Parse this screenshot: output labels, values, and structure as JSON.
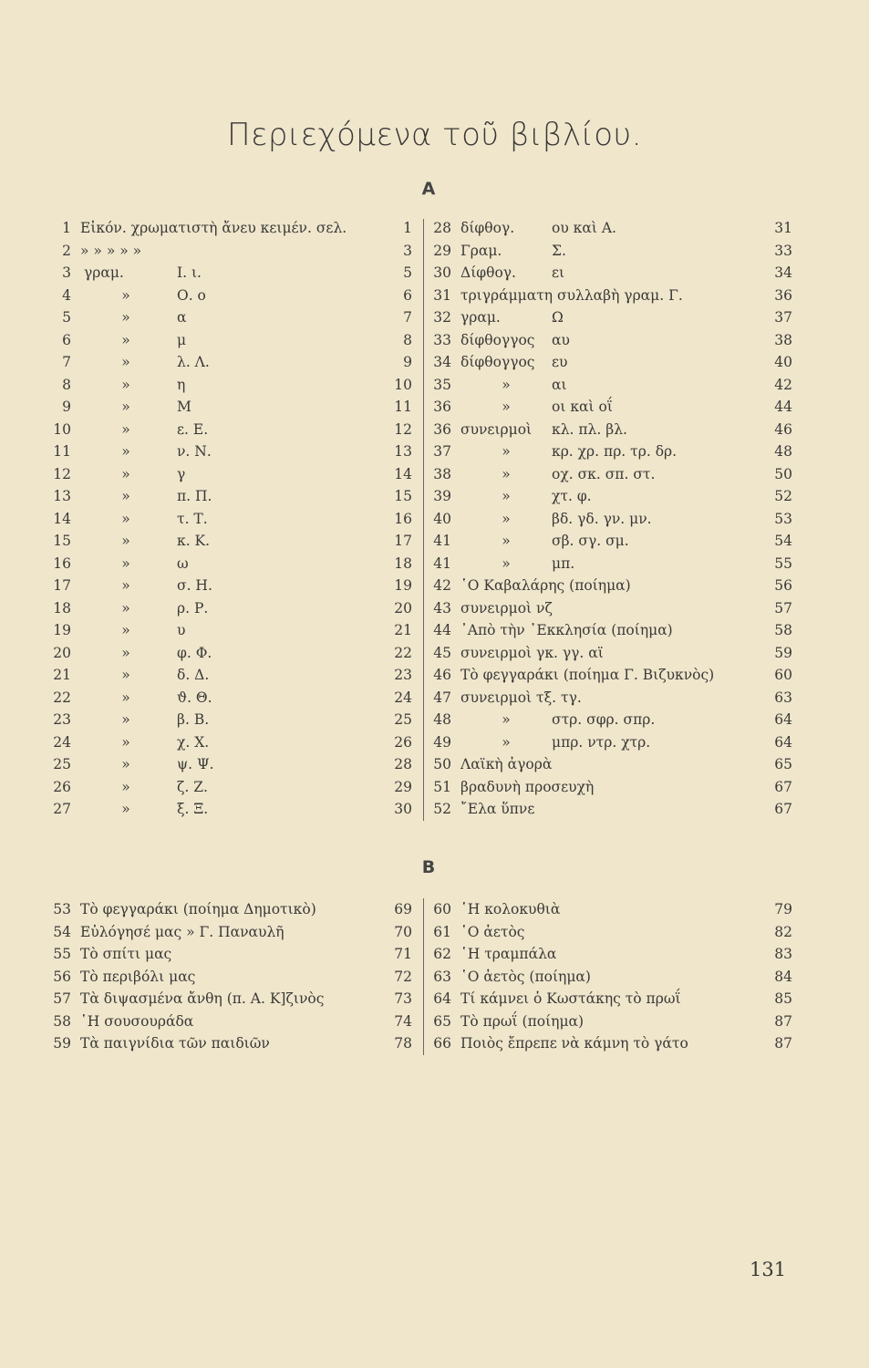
{
  "title": "Περιεχόμενα τοῦ βιβλίου.",
  "section_a": {
    "label": "Α",
    "left": [
      {
        "n": "1",
        "full": "Εἰκόν. χρωματιστὴ ἄνευ κειμέν. σελ.",
        "p": "1"
      },
      {
        "n": "2",
        "full": "»          »          »        »        »",
        "p": "3"
      },
      {
        "n": "3",
        "a": "γραμ.",
        "b": "Ι. ι.",
        "p": "5"
      },
      {
        "n": "4",
        "a": "»",
        "b": "Ο. ο",
        "p": "6"
      },
      {
        "n": "5",
        "a": "»",
        "b": "α",
        "p": "7"
      },
      {
        "n": "6",
        "a": "»",
        "b": "μ",
        "p": "8"
      },
      {
        "n": "7",
        "a": "»",
        "b": "λ. Λ.",
        "p": "9"
      },
      {
        "n": "8",
        "a": "»",
        "b": "η",
        "p": "10"
      },
      {
        "n": "9",
        "a": "»",
        "b": "Μ",
        "p": "11"
      },
      {
        "n": "10",
        "a": "»",
        "b": "ε. Ε.",
        "p": "12"
      },
      {
        "n": "11",
        "a": "»",
        "b": "ν. Ν.",
        "p": "13"
      },
      {
        "n": "12",
        "a": "»",
        "b": "γ",
        "p": "14"
      },
      {
        "n": "13",
        "a": "»",
        "b": "π. Π.",
        "p": "15"
      },
      {
        "n": "14",
        "a": "»",
        "b": "τ. Τ.",
        "p": "16"
      },
      {
        "n": "15",
        "a": "»",
        "b": "κ. Κ.",
        "p": "17"
      },
      {
        "n": "16",
        "a": "»",
        "b": "ω",
        "p": "18"
      },
      {
        "n": "17",
        "a": "»",
        "b": "σ. Η.",
        "p": "19"
      },
      {
        "n": "18",
        "a": "»",
        "b": "ρ. Ρ.",
        "p": "20"
      },
      {
        "n": "19",
        "a": "»",
        "b": "υ",
        "p": "21"
      },
      {
        "n": "20",
        "a": "»",
        "b": "φ. Φ.",
        "p": "22"
      },
      {
        "n": "21",
        "a": "»",
        "b": "δ. Δ.",
        "p": "23"
      },
      {
        "n": "22",
        "a": "»",
        "b": "ϑ. Θ.",
        "p": "24"
      },
      {
        "n": "23",
        "a": "»",
        "b": "β. Β.",
        "p": "25"
      },
      {
        "n": "24",
        "a": "»",
        "b": "χ. Χ.",
        "p": "26"
      },
      {
        "n": "25",
        "a": "»",
        "b": "ψ. Ψ.",
        "p": "28"
      },
      {
        "n": "26",
        "a": "»",
        "b": "ζ. Ζ.",
        "p": "29"
      },
      {
        "n": "27",
        "a": "»",
        "b": "ξ. Ξ.",
        "p": "30"
      }
    ],
    "right": [
      {
        "n": "28",
        "a": "δίφθογ.",
        "b": "ου καὶ Α.",
        "p": "31"
      },
      {
        "n": "29",
        "a": "Γραμ.",
        "b": "Σ.",
        "p": "33"
      },
      {
        "n": "30",
        "a": "Δίφθογ.",
        "b": "ει",
        "p": "34"
      },
      {
        "n": "31",
        "full": "τριγράμματη συλλαβὴ γραμ. Γ.",
        "p": "36"
      },
      {
        "n": "32",
        "a": "γραμ.",
        "b": "Ω",
        "p": "37"
      },
      {
        "n": "33",
        "a": "δίφθογγος",
        "b": "αυ",
        "p": "38"
      },
      {
        "n": "34",
        "a": "δίφθογγος",
        "b": "ευ",
        "p": "40"
      },
      {
        "n": "35",
        "a": "»",
        "b": "αι",
        "p": "42"
      },
      {
        "n": "36",
        "a": "»",
        "b": "οι καὶ οΐ",
        "p": "44"
      },
      {
        "n": "36",
        "a": "συνειρμοὶ",
        "b": "κλ. πλ. βλ.",
        "p": "46"
      },
      {
        "n": "37",
        "a": "»",
        "b": "κρ. χρ. πρ. τρ. δρ.",
        "p": "48"
      },
      {
        "n": "38",
        "a": "»",
        "b": "οχ. σκ. σπ. στ.",
        "p": "50"
      },
      {
        "n": "39",
        "a": "»",
        "b": "χτ. φ.",
        "p": "52"
      },
      {
        "n": "40",
        "a": "»",
        "b": "βδ. γδ. γν. μν.",
        "p": "53"
      },
      {
        "n": "41",
        "a": "»",
        "b": "σβ. σγ. σμ.",
        "p": "54"
      },
      {
        "n": "41",
        "a": "»",
        "b": "μπ.",
        "p": "55"
      },
      {
        "n": "42",
        "full": "῾Ο Καβαλάρης (ποίημα)",
        "p": "56"
      },
      {
        "n": "43",
        "full": "συνειρμοὶ  νζ",
        "p": "57"
      },
      {
        "n": "44",
        "full": "᾿Απὸ τὴν ᾿Εκκλησία (ποίημα)",
        "p": "58"
      },
      {
        "n": "45",
        "full": "συνειρμοὶ  γκ. γγ. αϊ",
        "p": "59"
      },
      {
        "n": "46",
        "full": "Τὸ φεγγαράκι (ποίημα Γ. Βιζυκνὸς)",
        "p": "60"
      },
      {
        "n": "47",
        "full": "συνειρμοὶ τξ. τγ.",
        "p": "63"
      },
      {
        "n": "48",
        "a": "»",
        "b": "στρ. σφρ. σπρ.",
        "p": "64"
      },
      {
        "n": "49",
        "a": "»",
        "b": "μπρ. ντρ. χτρ.",
        "p": "64"
      },
      {
        "n": "50",
        "full": "Λαϊκὴ ἀγορὰ",
        "p": "65"
      },
      {
        "n": "51",
        "full": "βραδυνὴ προσευχὴ",
        "p": "67"
      },
      {
        "n": "52",
        "full": "῎Ελα ὕπνε",
        "p": "67"
      }
    ]
  },
  "section_b": {
    "label": "Β",
    "left": [
      {
        "n": "53",
        "full": "Τὸ φεγγαράκι (ποίημα Δημοτικὸ)",
        "p": "69"
      },
      {
        "n": "54",
        "full": "Εὐλόγησέ μας     »  Γ. Παναυλῆ",
        "p": "70"
      },
      {
        "n": "55",
        "full": "Τὸ σπίτι μας",
        "p": "71"
      },
      {
        "n": "56",
        "full": "Τὸ περιβόλι μας",
        "p": "72"
      },
      {
        "n": "57",
        "full": "Τὰ διψασμένα ἄνθη (π. Α. Κ]ζινὸς",
        "p": "73"
      },
      {
        "n": "58",
        "full": "῾Η σουσουράδα",
        "p": "74"
      },
      {
        "n": "59",
        "full": "Τὰ παιγνίδια τῶν παιδιῶν",
        "p": "78"
      }
    ],
    "right": [
      {
        "n": "60",
        "full": "῾Η κολοκυθιὰ",
        "p": "79"
      },
      {
        "n": "61",
        "full": "῾Ο ἀετὸς",
        "p": "82"
      },
      {
        "n": "62",
        "full": "῾Η τραμπάλα",
        "p": "83"
      },
      {
        "n": "63",
        "full": "῾Ο ἀετὸς (ποίημα)",
        "p": "84"
      },
      {
        "n": "64",
        "full": "Τί κάμνει ὁ Κωστάκης τὸ πρωΐ",
        "p": "85"
      },
      {
        "n": "65",
        "full": "Τὸ πρωΐ (ποίημα)",
        "p": "87"
      },
      {
        "n": "66",
        "full": "Ποιὸς ἔπρεπε νὰ κάμνη τὸ γάτο",
        "p": "87"
      }
    ]
  },
  "page_number": "131"
}
